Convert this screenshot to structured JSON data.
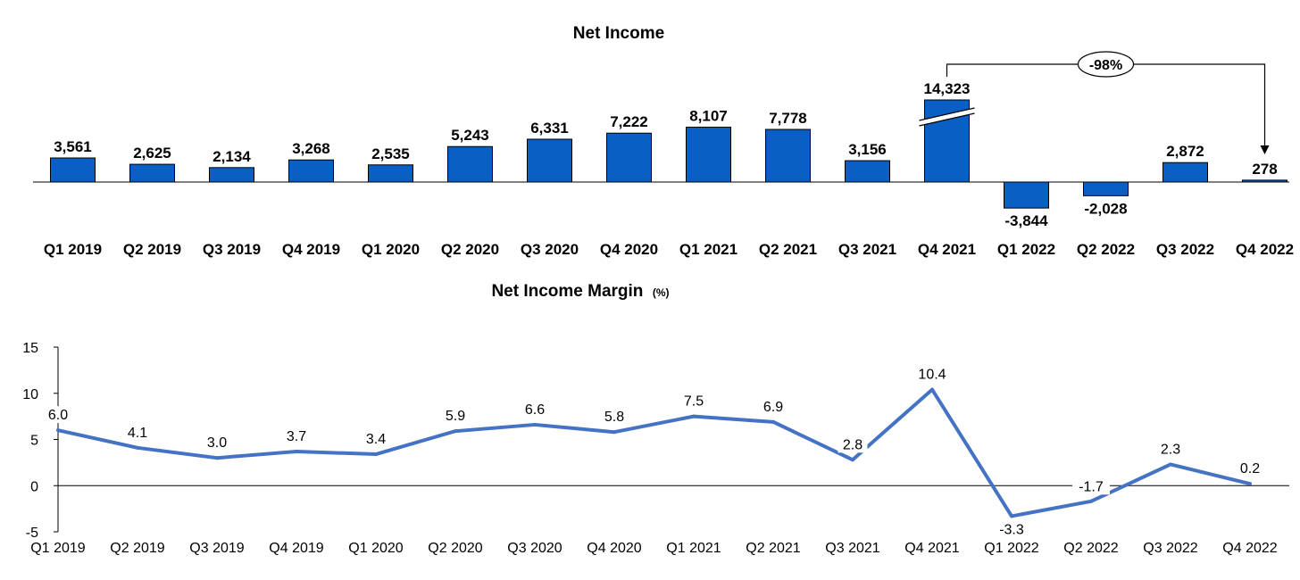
{
  "chart_data": [
    {
      "type": "bar",
      "title": "Net Income",
      "categories": [
        "Q1 2019",
        "Q2 2019",
        "Q3 2019",
        "Q4 2019",
        "Q1 2020",
        "Q2 2020",
        "Q3 2020",
        "Q4 2020",
        "Q1 2021",
        "Q2 2021",
        "Q3 2021",
        "Q4 2021",
        "Q1 2022",
        "Q2 2022",
        "Q3 2022",
        "Q4 2022"
      ],
      "values": [
        3561,
        2625,
        2134,
        3268,
        2535,
        5243,
        6331,
        7222,
        8107,
        7778,
        3156,
        14323,
        -3844,
        -2028,
        2872,
        278
      ],
      "data_labels": [
        "3,561",
        "2,625",
        "2,134",
        "3,268",
        "2,535",
        "5,243",
        "6,331",
        "7,222",
        "8,107",
        "7,778",
        "3,156",
        "14,323",
        "-3,844",
        "-2,028",
        "2,872",
        "278"
      ],
      "color": "#0a5fc4",
      "axis_break_on": "Q4 2021",
      "annotation": {
        "text": "-98%",
        "from": "Q4 2021",
        "to": "Q4 2022"
      }
    },
    {
      "type": "line",
      "title": "Net Income Margin",
      "title_unit": "(%)",
      "categories": [
        "Q1 2019",
        "Q2 2019",
        "Q3 2019",
        "Q4 2019",
        "Q1 2020",
        "Q2 2020",
        "Q3 2020",
        "Q4 2020",
        "Q1 2021",
        "Q2 2021",
        "Q3 2021",
        "Q4 2021",
        "Q1 2022",
        "Q2 2022",
        "Q3 2022",
        "Q4 2022"
      ],
      "values": [
        6.0,
        4.1,
        3.0,
        3.7,
        3.4,
        5.9,
        6.6,
        5.8,
        7.5,
        6.9,
        2.8,
        10.4,
        -3.3,
        -1.7,
        2.3,
        0.2
      ],
      "data_labels": [
        "6.0",
        "4.1",
        "3.0",
        "3.7",
        "3.4",
        "5.9",
        "6.6",
        "5.8",
        "7.5",
        "6.9",
        "2.8",
        "10.4",
        "-3.3",
        "-1.7",
        "2.3",
        "0.2"
      ],
      "ylim": [
        -5,
        15
      ],
      "yticks": [
        "-5",
        "0",
        "5",
        "10",
        "15"
      ],
      "color": "#4472c4"
    }
  ]
}
